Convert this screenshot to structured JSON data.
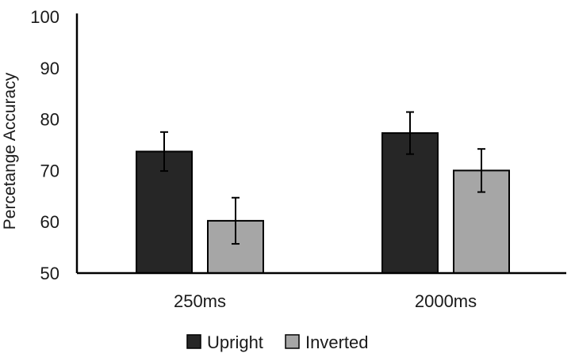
{
  "chart_data": {
    "type": "bar",
    "title": "",
    "xlabel": "",
    "ylabel": "Percetange Accuracy",
    "categories": [
      "250ms",
      "2000ms"
    ],
    "series": [
      {
        "name": "Upright",
        "values": [
          73.7,
          77.3
        ],
        "errors": [
          3.8,
          4.1
        ],
        "color": "#262626"
      },
      {
        "name": "Inverted",
        "values": [
          60.2,
          70.0
        ],
        "errors": [
          4.5,
          4.2
        ],
        "color": "#a6a6a6"
      }
    ],
    "ylim": [
      50,
      100
    ],
    "yticks": [
      50,
      60,
      70,
      80,
      90,
      100
    ],
    "grid": false,
    "legend": "bottom"
  }
}
